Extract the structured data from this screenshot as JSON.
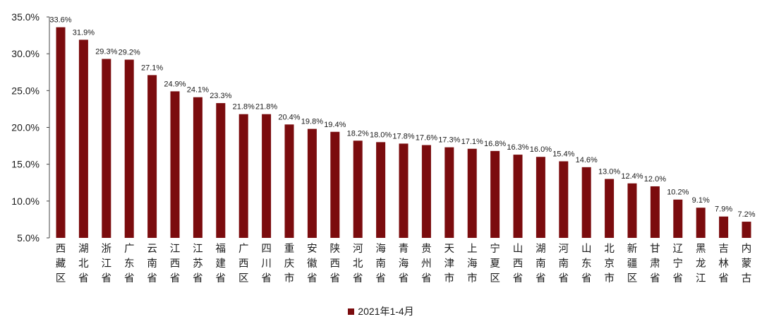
{
  "chart_data": {
    "type": "bar",
    "title": "",
    "xlabel": "",
    "ylabel": "",
    "ylim": [
      5,
      35
    ],
    "yticks": [
      "5.0%",
      "10.0%",
      "15.0%",
      "20.0%",
      "25.0%",
      "30.0%",
      "35.0%"
    ],
    "grid": false,
    "legend_position": "bottom",
    "bar_color": "#7b0c0e",
    "categories": [
      "西藏区",
      "湖北省",
      "浙江省",
      "广东省",
      "云南省",
      "江西省",
      "江苏省",
      "福建省",
      "广西区",
      "四川省",
      "重庆市",
      "安徽省",
      "陕西省",
      "河北省",
      "海南省",
      "青海省",
      "贵州省",
      "天津市",
      "上海市",
      "宁夏区",
      "山西省",
      "湖南省",
      "河南省",
      "山东省",
      "北京市",
      "新疆区",
      "甘肃省",
      "辽宁省",
      "黑龙江",
      "吉林省",
      "内蒙古"
    ],
    "series": [
      {
        "name": "2021年1-4月",
        "values": [
          33.6,
          31.9,
          29.3,
          29.2,
          27.1,
          24.9,
          24.1,
          23.3,
          21.8,
          21.8,
          20.4,
          19.8,
          19.4,
          18.2,
          18.0,
          17.8,
          17.6,
          17.3,
          17.1,
          16.8,
          16.3,
          16.0,
          15.4,
          14.6,
          13.0,
          12.4,
          12.0,
          10.2,
          9.1,
          7.9,
          7.2
        ],
        "labels": [
          "33.6%",
          "31.9%",
          "29.3%",
          "29.2%",
          "27.1%",
          "24.9%",
          "24.1%",
          "23.3%",
          "21.8%",
          "21.8%",
          "20.4%",
          "19.8%",
          "19.4%",
          "18.2%",
          "18.0%",
          "17.8%",
          "17.6%",
          "17.3%",
          "17.1%",
          "16.8%",
          "16.3%",
          "16.0%",
          "15.4%",
          "14.6%",
          "13.0%",
          "12.4%",
          "12.0%",
          "10.2%",
          "9.1%",
          "7.9%",
          "7.2%"
        ]
      }
    ]
  }
}
